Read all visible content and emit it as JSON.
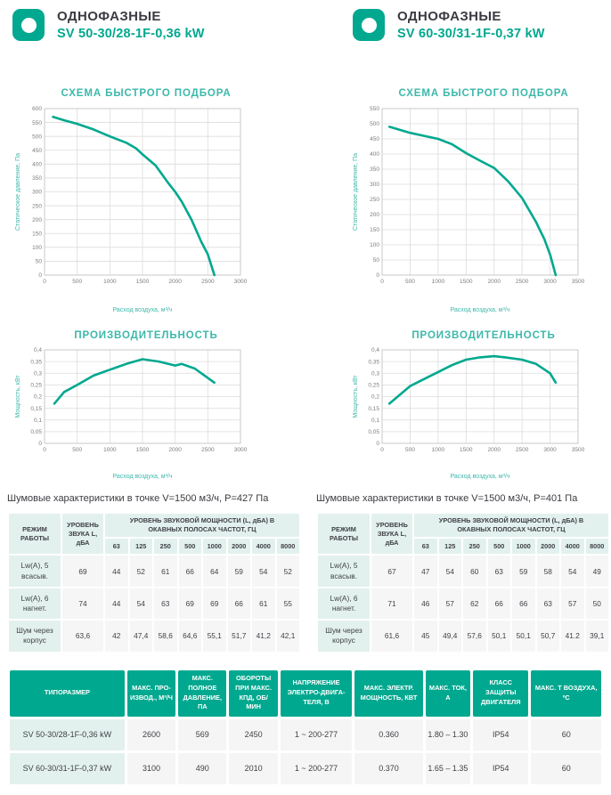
{
  "brand": {
    "teal": "#00a88f",
    "teal_light": "#3cb8aa",
    "mint": "#e2f1ed",
    "header_icon": "rounded-square-with-circle"
  },
  "products": [
    {
      "category": "ОДНОФАЗНЫЕ",
      "model": "SV 50-30/28-1F-0,36 kW"
    },
    {
      "category": "ОДНОФАЗНЫЕ",
      "model": "SV 60-30/31-1F-0,37 kW"
    }
  ],
  "chart_data": [
    {
      "type": "line",
      "title": "СХЕМА БЫСТРОГО ПОДБОРА",
      "xlabel": "Расход воздуха, м³/ч",
      "ylabel": "Статическое давление, Па",
      "xlim": [
        0,
        3000
      ],
      "xstep": 500,
      "ylim": [
        0,
        600
      ],
      "ystep": 50,
      "grid": true,
      "legend": "none",
      "x": [
        130,
        300,
        500,
        750,
        1000,
        1250,
        1400,
        1500,
        1700,
        1900,
        2000,
        2100,
        2250,
        2400,
        2500,
        2600
      ],
      "y": [
        570,
        558,
        545,
        525,
        500,
        477,
        457,
        435,
        395,
        330,
        300,
        265,
        200,
        120,
        75,
        0
      ]
    },
    {
      "type": "line",
      "title": "СХЕМА БЫСТРОГО ПОДБОРА",
      "xlabel": "Расход воздуха, м³/ч",
      "ylabel": "Статическое давление, Па",
      "xlim": [
        0,
        3500
      ],
      "xstep": 500,
      "ylim": [
        0,
        550
      ],
      "ystep": 50,
      "grid": true,
      "legend": "none",
      "x": [
        130,
        500,
        750,
        1000,
        1250,
        1500,
        1750,
        2000,
        2250,
        2500,
        2750,
        2900,
        3000,
        3100
      ],
      "y": [
        490,
        470,
        460,
        450,
        432,
        403,
        378,
        354,
        310,
        255,
        175,
        118,
        68,
        0
      ]
    },
    {
      "type": "line",
      "title": "ПРОИЗВОДИТЕЛЬНОСТЬ",
      "xlabel": "Расход воздуха, м³/ч",
      "ylabel": "Мощность, кВт",
      "xlim": [
        0,
        3000
      ],
      "xstep": 500,
      "ylim": [
        0,
        0.4
      ],
      "ystep": 0.05,
      "grid": true,
      "legend": "none",
      "x": [
        150,
        300,
        500,
        750,
        1000,
        1250,
        1500,
        1750,
        2000,
        2100,
        2300,
        2600
      ],
      "y": [
        0.17,
        0.22,
        0.25,
        0.29,
        0.315,
        0.34,
        0.36,
        0.35,
        0.333,
        0.34,
        0.32,
        0.26
      ]
    },
    {
      "type": "line",
      "title": "ПРОИЗВОДИТЕЛЬНОСТЬ",
      "xlabel": "Расход воздуха, м³/ч",
      "ylabel": "Мощность, кВт",
      "xlim": [
        0,
        3500
      ],
      "xstep": 500,
      "ylim": [
        0,
        0.4
      ],
      "ystep": 0.05,
      "grid": true,
      "legend": "none",
      "x": [
        130,
        500,
        750,
        1000,
        1250,
        1500,
        1750,
        2000,
        2200,
        2500,
        2750,
        3000,
        3100
      ],
      "y": [
        0.17,
        0.245,
        0.275,
        0.305,
        0.335,
        0.358,
        0.368,
        0.373,
        0.368,
        0.358,
        0.34,
        0.3,
        0.26
      ]
    }
  ],
  "noise_tables": [
    {
      "title": "Шумовые характеристики в точке V=1500 м3/ч, P=427 Па",
      "col1": "РЕЖИМ РАБОТЫ",
      "col2": "УРОВЕНЬ ЗВУКА L, дБА",
      "group_header": "УРОВЕНЬ ЗВУКОВОЙ МОЩНОСТИ (L, дБА) В ОКАВНЫХ ПОЛОСАХ ЧАСТОТ, ГЦ",
      "frequencies": [
        "63",
        "125",
        "250",
        "500",
        "1000",
        "2000",
        "4000",
        "8000"
      ],
      "rows": [
        {
          "mode": "Lw(A), 5 всасыв.",
          "level": "69",
          "values": [
            "44",
            "52",
            "61",
            "66",
            "64",
            "59",
            "54",
            "52"
          ]
        },
        {
          "mode": "Lw(A), 6 нагнет.",
          "level": "74",
          "values": [
            "44",
            "54",
            "63",
            "69",
            "69",
            "66",
            "61",
            "55"
          ]
        },
        {
          "mode": "Шум через корпус",
          "level": "63,6",
          "values": [
            "42",
            "47,4",
            "58,6",
            "64,6",
            "55,1",
            "51,7",
            "41,2",
            "42,1"
          ]
        }
      ]
    },
    {
      "title": "Шумовые характеристики в точке V=1500 м3/ч, P=401 Па",
      "col1": "РЕЖИМ РАБОТЫ",
      "col2": "УРОВЕНЬ ЗВУКА L, дБА",
      "group_header": "УРОВЕНЬ ЗВУКОВОЙ МОЩНОСТИ (L, дБА) В ОКАВНЫХ ПОЛОСАХ ЧАСТОТ, ГЦ",
      "frequencies": [
        "63",
        "125",
        "250",
        "500",
        "1000",
        "2000",
        "4000",
        "8000"
      ],
      "rows": [
        {
          "mode": "Lw(A), 5 всасыв.",
          "level": "67",
          "values": [
            "47",
            "54",
            "60",
            "63",
            "59",
            "58",
            "54",
            "49"
          ]
        },
        {
          "mode": "Lw(A), 6 нагнет.",
          "level": "71",
          "values": [
            "46",
            "57",
            "62",
            "66",
            "66",
            "63",
            "57",
            "50"
          ]
        },
        {
          "mode": "Шум через корпус",
          "level": "61,6",
          "values": [
            "45",
            "49,4",
            "57,6",
            "50,1",
            "50,1",
            "50,7",
            "41.2",
            "39,1"
          ]
        }
      ]
    }
  ],
  "spec_table": {
    "headers": [
      "ТИПОРАЗМЕР",
      "МАКС. ПРО-ИЗВОД., М³/Ч",
      "МАКС. ПОЛНОЕ ДАВЛЕНИЕ, ПА",
      "ОБОРОТЫ ПРИ МАКС. КПД, ОБ/ МИН",
      "НАПРЯЖЕНИЕ ЭЛЕКТРО-ДВИГА-ТЕЛЯ, В",
      "МАКС. ЭЛЕКТР. МОЩНОСТЬ, КВТ",
      "МАКС. ТОК, А",
      "КЛАСС ЗАЩИТЫ ДВИГАТЕЛЯ",
      "МАКС. t ВОЗДУХА, ºС"
    ],
    "rows": [
      [
        "SV 50-30/28-1F-0,36 kW",
        "2600",
        "569",
        "2450",
        "1 ~ 200-277",
        "0.360",
        "1.80 – 1.30",
        "IP54",
        "60"
      ],
      [
        "SV 60-30/31-1F-0,37 kW",
        "3100",
        "490",
        "2010",
        "1 ~ 200-277",
        "0.370",
        "1.65 – 1.35",
        "IP54",
        "60"
      ]
    ]
  }
}
